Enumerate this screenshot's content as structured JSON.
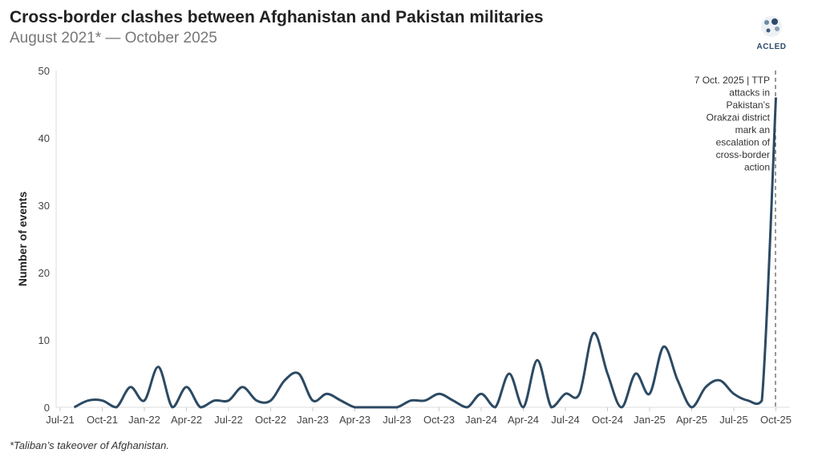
{
  "chart_data": {
    "type": "line",
    "title": "Cross-border clashes between Afghanistan and Pakistan militaries",
    "subtitle": "August 2021* — October 2025",
    "xlabel": "",
    "ylabel": "Number of events",
    "ylim": [
      0,
      50
    ],
    "yticks": [
      "0",
      "10",
      "20",
      "30",
      "40",
      "50"
    ],
    "xticks": [
      "Jul-21",
      "Oct-21",
      "Jan-22",
      "Apr-22",
      "Jul-22",
      "Oct-22",
      "Jan-23",
      "Apr-23",
      "Jul-23",
      "Oct-23",
      "Jan-24",
      "Apr-24",
      "Jul-24",
      "Oct-24",
      "Jan-25",
      "Apr-25",
      "Jul-25",
      "Oct-25"
    ],
    "x": [
      "Aug-21",
      "Sep-21",
      "Oct-21",
      "Nov-21",
      "Dec-21",
      "Jan-22",
      "Feb-22",
      "Mar-22",
      "Apr-22",
      "May-22",
      "Jun-22",
      "Jul-22",
      "Aug-22",
      "Sep-22",
      "Oct-22",
      "Nov-22",
      "Dec-22",
      "Jan-23",
      "Feb-23",
      "Mar-23",
      "Apr-23",
      "May-23",
      "Jun-23",
      "Jul-23",
      "Aug-23",
      "Sep-23",
      "Oct-23",
      "Nov-23",
      "Dec-23",
      "Jan-24",
      "Feb-24",
      "Mar-24",
      "Apr-24",
      "May-24",
      "Jun-24",
      "Jul-24",
      "Aug-24",
      "Sep-24",
      "Oct-24",
      "Nov-24",
      "Dec-24",
      "Jan-25",
      "Feb-25",
      "Mar-25",
      "Apr-25",
      "May-25",
      "Jun-25",
      "Jul-25",
      "Aug-25",
      "Sep-25",
      "Oct-25"
    ],
    "series": [
      {
        "name": "Events",
        "color": "#2c4a63",
        "values": [
          0,
          1,
          1,
          0,
          3,
          1,
          6,
          0,
          3,
          0,
          1,
          1,
          3,
          1,
          1,
          4,
          5,
          1,
          2,
          1,
          0,
          0,
          0,
          0,
          1,
          1,
          2,
          1,
          0,
          2,
          0,
          5,
          0,
          7,
          0,
          2,
          2,
          11,
          5,
          0,
          5,
          2,
          9,
          4,
          0,
          3,
          4,
          2,
          1,
          1,
          46
        ]
      }
    ],
    "annotation": {
      "lines": [
        "7 Oct. 2025 | TTP",
        "attacks in",
        "Pakistan’s",
        "Orakzai district",
        "mark an",
        "escalation of",
        "cross-border",
        "action"
      ]
    },
    "grid": false
  },
  "logo": "ACLED",
  "footnote": "*Taliban’s takeover of Afghanistan."
}
